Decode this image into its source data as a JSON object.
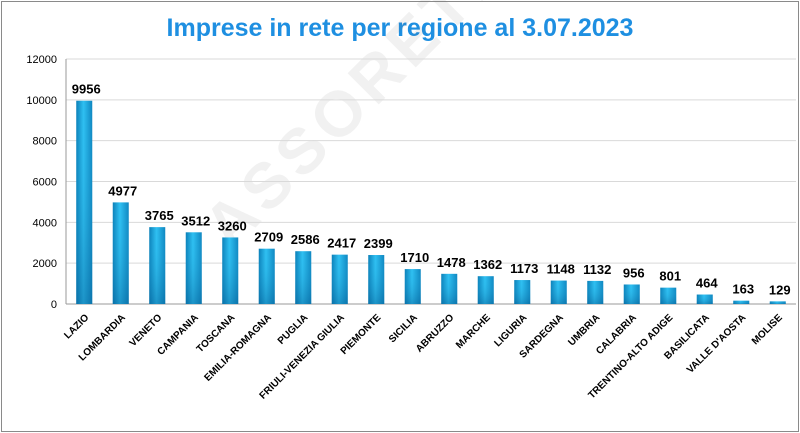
{
  "chart_data": {
    "type": "bar",
    "title": "Imprese in rete per regione al 3.07.2023",
    "categories": [
      "LAZIO",
      "LOMBARDIA",
      "VENETO",
      "CAMPANIA",
      "TOSCANA",
      "EMILIA-ROMAGNA",
      "PUGLIA",
      "FRIULI-VENEZIA GIULIA",
      "PIEMONTE",
      "SICILIA",
      "ABRUZZO",
      "MARCHE",
      "LIGURIA",
      "SARDEGNA",
      "UMBRIA",
      "CALABRIA",
      "TRENTINO-ALTO ADIGE",
      "BASILICATA",
      "VALLE D'AOSTA",
      "MOLISE"
    ],
    "values": [
      9956,
      4977,
      3765,
      3512,
      3260,
      2709,
      2586,
      2417,
      2399,
      1710,
      1478,
      1362,
      1173,
      1148,
      1132,
      956,
      801,
      464,
      163,
      129
    ],
    "ylim": [
      0,
      12000
    ],
    "yticks": [
      0,
      2000,
      4000,
      6000,
      8000,
      10000,
      12000
    ],
    "grid": true,
    "legend": "none",
    "bar_color": "#1fa6df"
  },
  "watermark": "ASSORETIPMI"
}
